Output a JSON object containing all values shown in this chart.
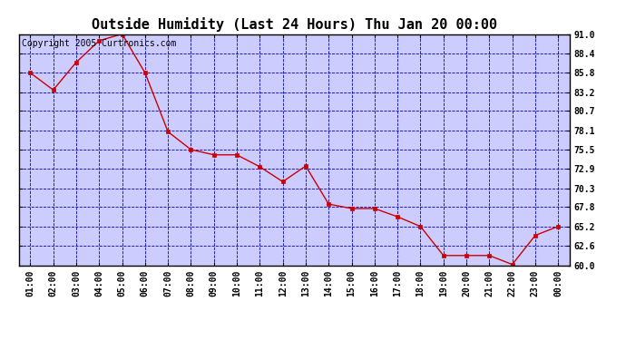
{
  "title": "Outside Humidity (Last 24 Hours) Thu Jan 20 00:00",
  "copyright": "Copyright 2005 Curtronics.com",
  "x_labels": [
    "01:00",
    "02:00",
    "03:00",
    "04:00",
    "05:00",
    "06:00",
    "07:00",
    "08:00",
    "09:00",
    "10:00",
    "11:00",
    "12:00",
    "13:00",
    "14:00",
    "15:00",
    "16:00",
    "17:00",
    "18:00",
    "19:00",
    "20:00",
    "21:00",
    "22:00",
    "23:00",
    "00:00"
  ],
  "y_values": [
    85.8,
    83.5,
    87.2,
    90.1,
    91.0,
    85.8,
    77.9,
    75.5,
    74.8,
    74.8,
    73.2,
    71.2,
    73.3,
    68.2,
    67.6,
    67.6,
    66.5,
    65.2,
    61.3,
    61.3,
    61.3,
    60.1,
    64.0,
    65.2
  ],
  "ylim_min": 60.0,
  "ylim_max": 91.0,
  "y_ticks": [
    60.0,
    62.6,
    65.2,
    67.8,
    70.3,
    72.9,
    75.5,
    78.1,
    80.7,
    83.2,
    85.8,
    88.4,
    91.0
  ],
  "line_color": "#cc0000",
  "marker_color": "#cc0000",
  "bg_color": "#ccccff",
  "outer_bg_color": "#ffffff",
  "border_color": "#000000",
  "grid_color": "#0000bb",
  "title_fontsize": 11,
  "tick_fontsize": 7,
  "copyright_fontsize": 7
}
